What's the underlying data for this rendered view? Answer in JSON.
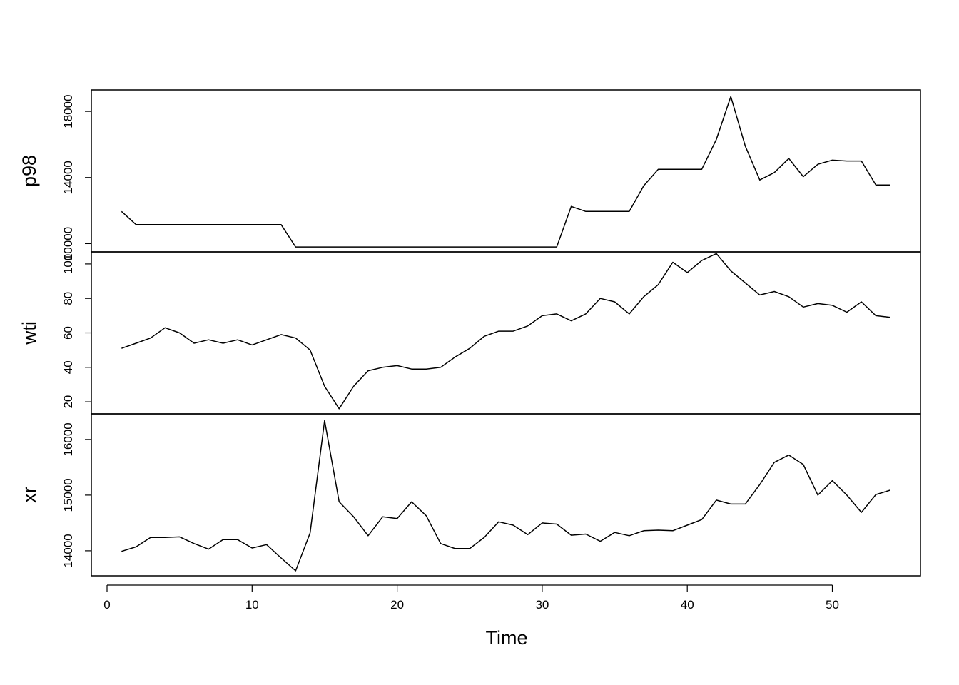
{
  "chart_data": {
    "type": "line",
    "xlabel": "Time",
    "xlim": [
      1,
      54
    ],
    "x_ticks": [
      0,
      10,
      20,
      30,
      40,
      50
    ],
    "x_tick_labels": [
      "0",
      "10",
      "20",
      "30",
      "40",
      "50"
    ],
    "grid": false,
    "panels": [
      {
        "name": "p98",
        "ylabel": "p98",
        "ylim": [
          9500,
          19300
        ],
        "y_ticks": [
          10000,
          14000,
          18000
        ],
        "y_tick_labels": [
          "10000",
          "14000",
          "18000"
        ],
        "values": [
          11950,
          11150,
          11150,
          11150,
          11150,
          11150,
          11150,
          11150,
          11150,
          11150,
          11150,
          11150,
          9800,
          9800,
          9800,
          9800,
          9800,
          9800,
          9800,
          9800,
          9800,
          9800,
          9800,
          9800,
          9800,
          9800,
          9800,
          9800,
          9800,
          9800,
          9800,
          12250,
          11950,
          11950,
          11950,
          11950,
          13500,
          14500,
          14500,
          14500,
          14500,
          16300,
          18900,
          15900,
          13850,
          14300,
          15150,
          14050,
          14800,
          15050,
          15000,
          15000,
          13550,
          13550
        ]
      },
      {
        "name": "wti",
        "ylabel": "wti",
        "ylim": [
          13,
          107
        ],
        "y_ticks": [
          20,
          40,
          60,
          80,
          100
        ],
        "y_tick_labels": [
          "20",
          "40",
          "60",
          "80",
          "100"
        ],
        "values": [
          51,
          54,
          57,
          63,
          60,
          54,
          56,
          54,
          56,
          53,
          56,
          59,
          57,
          50,
          29,
          16,
          29,
          38,
          40,
          41,
          39,
          39,
          40,
          46,
          51,
          58,
          61,
          61,
          64,
          70,
          71,
          67,
          71,
          80,
          78,
          71,
          81,
          88,
          101,
          95,
          102,
          106,
          96,
          89,
          82,
          84,
          81,
          75,
          77,
          76,
          72,
          78,
          70,
          69
        ]
      },
      {
        "name": "xr",
        "ylabel": "xr",
        "ylim": [
          13550,
          16460
        ],
        "y_ticks": [
          14000,
          15000,
          16000
        ],
        "y_tick_labels": [
          "14000",
          "15000",
          "16000"
        ],
        "values": [
          13990,
          14070,
          14240,
          14240,
          14250,
          14130,
          14030,
          14200,
          14200,
          14050,
          14110,
          13870,
          13640,
          14320,
          16340,
          14880,
          14610,
          14270,
          14610,
          14580,
          14880,
          14630,
          14130,
          14040,
          14040,
          14240,
          14520,
          14460,
          14290,
          14500,
          14480,
          14280,
          14300,
          14170,
          14330,
          14270,
          14360,
          14370,
          14360,
          14460,
          14560,
          14910,
          14840,
          14840,
          15190,
          15590,
          15720,
          15550,
          15000,
          15260,
          15000,
          14690,
          15010,
          15090
        ]
      }
    ]
  }
}
